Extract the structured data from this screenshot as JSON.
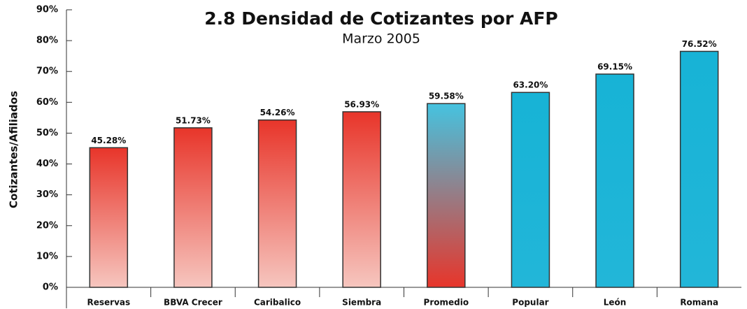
{
  "chart_data": {
    "type": "bar",
    "title": "2.8 Densidad de Cotizantes por AFP",
    "subtitle": "Marzo 2005",
    "y_label": "Cotizantes/Afiliados",
    "categories": [
      "Reservas",
      "BBVA Crecer",
      "Caribalico",
      "Siembra",
      "Promedio",
      "Popular",
      "León",
      "Romana"
    ],
    "values": [
      45.28,
      51.73,
      54.26,
      56.93,
      59.58,
      63.2,
      69.15,
      76.52
    ],
    "value_labels": [
      "45.28%",
      "51.73%",
      "54.26%",
      "56.93%",
      "59.58%",
      "63.20%",
      "69.15%",
      "76.52%"
    ],
    "colors": [
      [
        "#e8352a",
        "#f6c6bf"
      ],
      [
        "#e8352a",
        "#f6c6bf"
      ],
      [
        "#e8352a",
        "#f6c6bf"
      ],
      [
        "#e8352a",
        "#f6c6bf"
      ],
      [
        "#45c3e0",
        "#e8352a"
      ],
      [
        "#17b3d6",
        "#22b6d8"
      ],
      [
        "#17b3d6",
        "#22b6d8"
      ],
      [
        "#17b3d6",
        "#22b6d8"
      ]
    ],
    "ylim": [
      0,
      90
    ],
    "yticks": [
      {
        "value": 0,
        "label": "0%"
      },
      {
        "value": 10,
        "label": "10%"
      },
      {
        "value": 20,
        "label": "20%"
      },
      {
        "value": 30,
        "label": "30%"
      },
      {
        "value": 40,
        "label": "40%"
      },
      {
        "value": 50,
        "label": "50%"
      },
      {
        "value": 60,
        "label": "60%"
      },
      {
        "value": 70,
        "label": "70%"
      },
      {
        "value": 80,
        "label": "80%"
      },
      {
        "value": 90,
        "label": "90%"
      }
    ]
  }
}
